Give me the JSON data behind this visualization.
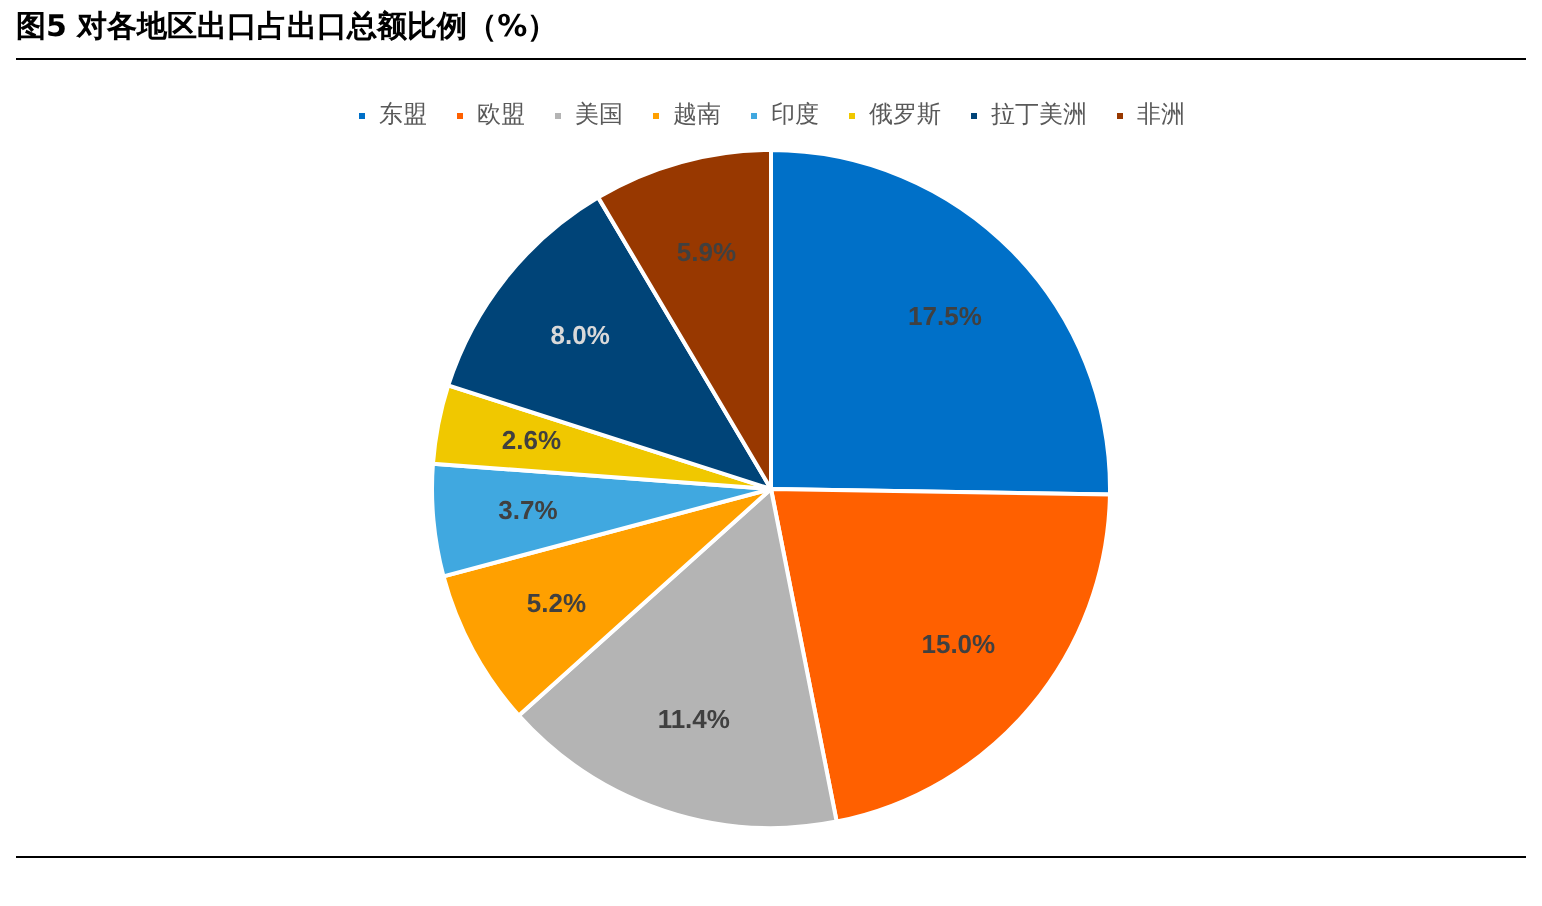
{
  "chart_data": {
    "type": "pie",
    "title": "图5  对各地区出口占出口总额比例（%）",
    "categories": [
      "东盟",
      "欧盟",
      "美国",
      "越南",
      "印度",
      "俄罗斯",
      "拉丁美洲",
      "非洲"
    ],
    "values": [
      17.5,
      15.0,
      11.4,
      5.2,
      3.7,
      2.6,
      8.0,
      5.9
    ],
    "colors": [
      "#0070c8",
      "#ff6000",
      "#b4b4b4",
      "#ffa000",
      "#40a8e0",
      "#f0c800",
      "#004478",
      "#983800"
    ],
    "value_labels": [
      "17.5%",
      "15.0%",
      "11.4%",
      "5.2%",
      "3.7%",
      "2.6%",
      "8.0%",
      "5.9%"
    ],
    "legend": "top"
  }
}
